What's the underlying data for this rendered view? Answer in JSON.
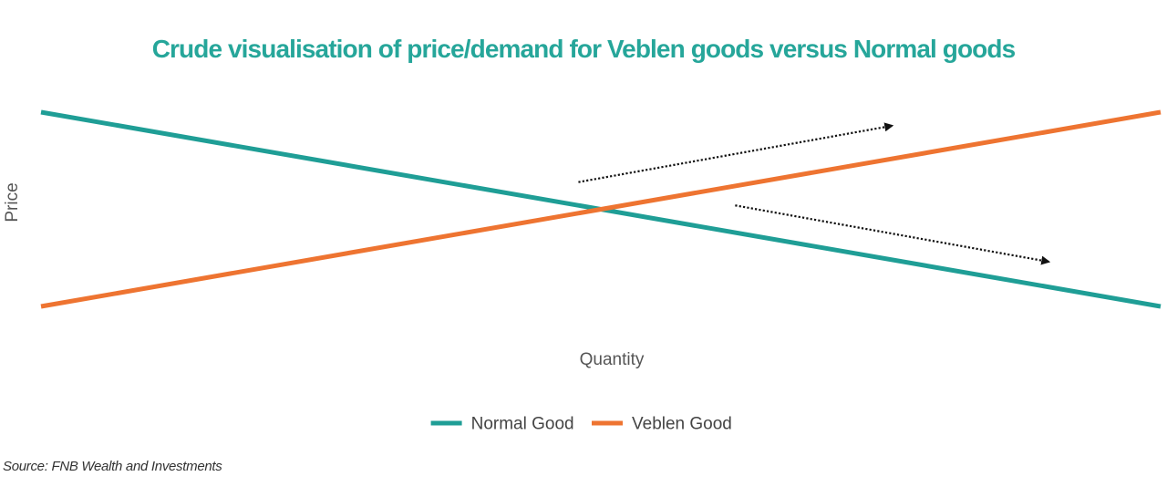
{
  "chart_data": {
    "type": "line",
    "title": "Crude visualisation of price/demand for Veblen goods versus Normal goods",
    "xlabel": "Quantity",
    "ylabel": "Price",
    "x": [
      0,
      1
    ],
    "series": [
      {
        "name": "Normal Good",
        "values": [
          1,
          0
        ],
        "color": "#1f9e96"
      },
      {
        "name": "Veblen Good",
        "values": [
          0,
          1
        ],
        "color": "#ee7431"
      }
    ],
    "annotations": [
      {
        "type": "arrow",
        "style": "dotted",
        "from": [
          0.48,
          0.64
        ],
        "to": [
          0.76,
          0.93
        ]
      },
      {
        "type": "arrow",
        "style": "dotted",
        "from": [
          0.62,
          0.52
        ],
        "to": [
          0.9,
          0.23
        ]
      }
    ],
    "grid": false,
    "legend": "bottom-center",
    "source": "Source: FNB Wealth and Investments"
  }
}
